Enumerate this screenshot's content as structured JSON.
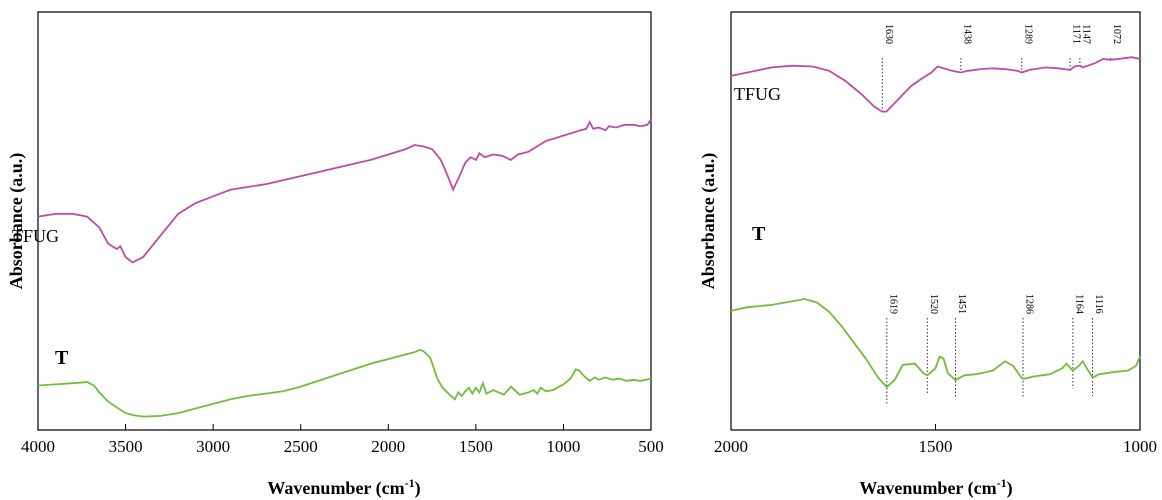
{
  "chart_data": [
    {
      "type": "line",
      "xlabel_main": "Wavenumber (cm",
      "xlabel_sup": "-1",
      "xlabel_end": ")",
      "ylabel": "Absorbance (a.u.)",
      "xlim": [
        4000,
        500
      ],
      "ylim": [
        0,
        100
      ],
      "x_ticks": [
        4000,
        3500,
        3000,
        2500,
        2000,
        1500,
        1000,
        500
      ],
      "tick_labels": [
        "4000",
        "3500",
        "3000",
        "2500",
        "2000",
        "1500",
        "1000",
        "500"
      ],
      "grid": false,
      "series": [
        {
          "name": "TFUG",
          "color": "#c04aa8",
          "label_x": 3700,
          "label_y": 46,
          "points": [
            [
              4000,
              42
            ],
            [
              3900,
              43
            ],
            [
              3800,
              43
            ],
            [
              3720,
              42
            ],
            [
              3650,
              38
            ],
            [
              3600,
              32
            ],
            [
              3550,
              30
            ],
            [
              3530,
              31
            ],
            [
              3500,
              27
            ],
            [
              3460,
              25
            ],
            [
              3400,
              27
            ],
            [
              3300,
              35
            ],
            [
              3200,
              43
            ],
            [
              3100,
              47
            ],
            [
              3000,
              49.5
            ],
            [
              2900,
              52
            ],
            [
              2800,
              53
            ],
            [
              2700,
              54
            ],
            [
              2600,
              55.5
            ],
            [
              2500,
              57
            ],
            [
              2400,
              58.5
            ],
            [
              2300,
              60
            ],
            [
              2200,
              61.5
            ],
            [
              2100,
              63
            ],
            [
              2000,
              65
            ],
            [
              1900,
              67
            ],
            [
              1850,
              68.5
            ],
            [
              1800,
              68
            ],
            [
              1750,
              67
            ],
            [
              1700,
              63
            ],
            [
              1660,
              57
            ],
            [
              1630,
              52
            ],
            [
              1600,
              56
            ],
            [
              1560,
              62
            ],
            [
              1530,
              64
            ],
            [
              1500,
              63
            ],
            [
              1480,
              65.5
            ],
            [
              1450,
              64
            ],
            [
              1400,
              65
            ],
            [
              1350,
              64.5
            ],
            [
              1300,
              63
            ],
            [
              1260,
              65
            ],
            [
              1200,
              66
            ],
            [
              1150,
              68
            ],
            [
              1100,
              70
            ],
            [
              1050,
              71
            ],
            [
              1000,
              72
            ],
            [
              950,
              73
            ],
            [
              900,
              74
            ],
            [
              870,
              74.5
            ],
            [
              850,
              77
            ],
            [
              830,
              74.5
            ],
            [
              800,
              75
            ],
            [
              760,
              74
            ],
            [
              740,
              75.5
            ],
            [
              700,
              75
            ],
            [
              650,
              76
            ],
            [
              600,
              76
            ],
            [
              560,
              75.5
            ],
            [
              520,
              76
            ],
            [
              500,
              78
            ]
          ]
        },
        {
          "name": "T",
          "color": "#6fbe3c",
          "label_x": 3880,
          "label_y": 15,
          "points": [
            [
              4000,
              15
            ],
            [
              3900,
              15.5
            ],
            [
              3800,
              16
            ],
            [
              3720,
              16.5
            ],
            [
              3680,
              15
            ],
            [
              3650,
              12
            ],
            [
              3600,
              8
            ],
            [
              3550,
              5.5
            ],
            [
              3500,
              3
            ],
            [
              3450,
              2
            ],
            [
              3400,
              1.5
            ],
            [
              3300,
              1.8
            ],
            [
              3200,
              3
            ],
            [
              3100,
              5
            ],
            [
              3000,
              7
            ],
            [
              2900,
              9
            ],
            [
              2800,
              10.5
            ],
            [
              2700,
              11.5
            ],
            [
              2600,
              12.5
            ],
            [
              2500,
              14.5
            ],
            [
              2400,
              17
            ],
            [
              2300,
              19.5
            ],
            [
              2200,
              22
            ],
            [
              2100,
              24.5
            ],
            [
              2000,
              26.5
            ],
            [
              1900,
              28.5
            ],
            [
              1850,
              29.5
            ],
            [
              1820,
              30.5
            ],
            [
              1800,
              30
            ],
            [
              1760,
              27
            ],
            [
              1720,
              18
            ],
            [
              1690,
              14
            ],
            [
              1650,
              11
            ],
            [
              1620,
              9
            ],
            [
              1600,
              12
            ],
            [
              1580,
              10.5
            ],
            [
              1560,
              12.5
            ],
            [
              1540,
              14
            ],
            [
              1520,
              11.5
            ],
            [
              1500,
              14
            ],
            [
              1480,
              12
            ],
            [
              1460,
              16
            ],
            [
              1440,
              11.5
            ],
            [
              1400,
              13
            ],
            [
              1340,
              11
            ],
            [
              1300,
              14.5
            ],
            [
              1250,
              11
            ],
            [
              1200,
              12
            ],
            [
              1170,
              13
            ],
            [
              1150,
              11.5
            ],
            [
              1130,
              14
            ],
            [
              1100,
              12.5
            ],
            [
              1060,
              13
            ],
            [
              1000,
              15.5
            ],
            [
              960,
              18
            ],
            [
              930,
              22
            ],
            [
              910,
              21.5
            ],
            [
              880,
              19
            ],
            [
              850,
              17
            ],
            [
              820,
              18.5
            ],
            [
              800,
              17.5
            ],
            [
              760,
              18.5
            ],
            [
              720,
              17.5
            ],
            [
              680,
              18
            ],
            [
              640,
              17
            ],
            [
              600,
              17.5
            ],
            [
              560,
              17
            ],
            [
              500,
              18
            ]
          ]
        }
      ]
    },
    {
      "type": "line",
      "xlabel_main": "Wavenumber (cm",
      "xlabel_sup": "-1",
      "xlabel_end": ")",
      "ylabel": "Absorbance (a.u.)",
      "xlim": [
        2000,
        1000
      ],
      "ylim": [
        0,
        100
      ],
      "x_ticks": [
        2000,
        1500,
        1000
      ],
      "tick_labels": [
        "2000",
        "1500",
        "1000"
      ],
      "grid": false,
      "series": [
        {
          "name": "TFUG",
          "color": "#c04aa8",
          "label_x": 1990,
          "label_y": 80,
          "points": [
            [
              2000,
              73
            ],
            [
              1960,
              75
            ],
            [
              1900,
              78
            ],
            [
              1850,
              79
            ],
            [
              1800,
              78.5
            ],
            [
              1760,
              76
            ],
            [
              1720,
              70
            ],
            [
              1680,
              62
            ],
            [
              1650,
              55
            ],
            [
              1630,
              52
            ],
            [
              1620,
              52
            ],
            [
              1600,
              57
            ],
            [
              1560,
              67
            ],
            [
              1530,
              72
            ],
            [
              1510,
              75
            ],
            [
              1495,
              78.5
            ],
            [
              1480,
              77.5
            ],
            [
              1460,
              76
            ],
            [
              1438,
              75
            ],
            [
              1420,
              76
            ],
            [
              1390,
              77
            ],
            [
              1360,
              77.5
            ],
            [
              1330,
              77
            ],
            [
              1300,
              76
            ],
            [
              1289,
              75
            ],
            [
              1270,
              76.5
            ],
            [
              1230,
              78
            ],
            [
              1200,
              77.5
            ],
            [
              1171,
              76.5
            ],
            [
              1160,
              78.5
            ],
            [
              1147,
              79
            ],
            [
              1140,
              78
            ],
            [
              1110,
              80.5
            ],
            [
              1090,
              83
            ],
            [
              1072,
              82.5
            ],
            [
              1050,
              83
            ],
            [
              1020,
              84
            ],
            [
              1000,
              83
            ]
          ]
        },
        {
          "name": "T",
          "color": "#6fbe3c",
          "label_x": 1945,
          "label_y": 50,
          "points": [
            [
              2000,
              46.5
            ],
            [
              1960,
              48
            ],
            [
              1900,
              49
            ],
            [
              1850,
              50.5
            ],
            [
              1820,
              51.5
            ],
            [
              1790,
              50
            ],
            [
              1760,
              46
            ],
            [
              1730,
              40
            ],
            [
              1700,
              33
            ],
            [
              1670,
              26
            ],
            [
              1640,
              18
            ],
            [
              1619,
              14
            ],
            [
              1600,
              17
            ],
            [
              1580,
              23.5
            ],
            [
              1550,
              24
            ],
            [
              1530,
              20
            ],
            [
              1520,
              19
            ],
            [
              1500,
              22
            ],
            [
              1490,
              27
            ],
            [
              1480,
              26
            ],
            [
              1470,
              20
            ],
            [
              1451,
              17
            ],
            [
              1430,
              19
            ],
            [
              1400,
              19.5
            ],
            [
              1360,
              21
            ],
            [
              1330,
              25
            ],
            [
              1310,
              23
            ],
            [
              1290,
              18
            ],
            [
              1286,
              17.5
            ],
            [
              1260,
              18.5
            ],
            [
              1220,
              19.5
            ],
            [
              1190,
              22
            ],
            [
              1180,
              24
            ],
            [
              1164,
              21
            ],
            [
              1150,
              23
            ],
            [
              1140,
              25
            ],
            [
              1130,
              22
            ],
            [
              1116,
              18
            ],
            [
              1100,
              19.5
            ],
            [
              1060,
              20.5
            ],
            [
              1030,
              21
            ],
            [
              1010,
              23
            ],
            [
              1000,
              27
            ]
          ]
        }
      ],
      "peak_labels_top": [
        "1630",
        "1438",
        "1289",
        "1171",
        "1147",
        "1072"
      ],
      "peak_x_top": [
        1630,
        1438,
        1289,
        1171,
        1147,
        1072
      ],
      "peak_labels_bottom": [
        "1619",
        "1520",
        "1451",
        "1286",
        "1164",
        "1116"
      ],
      "peak_x_bottom": [
        1619,
        1520,
        1451,
        1286,
        1164,
        1116
      ]
    }
  ]
}
